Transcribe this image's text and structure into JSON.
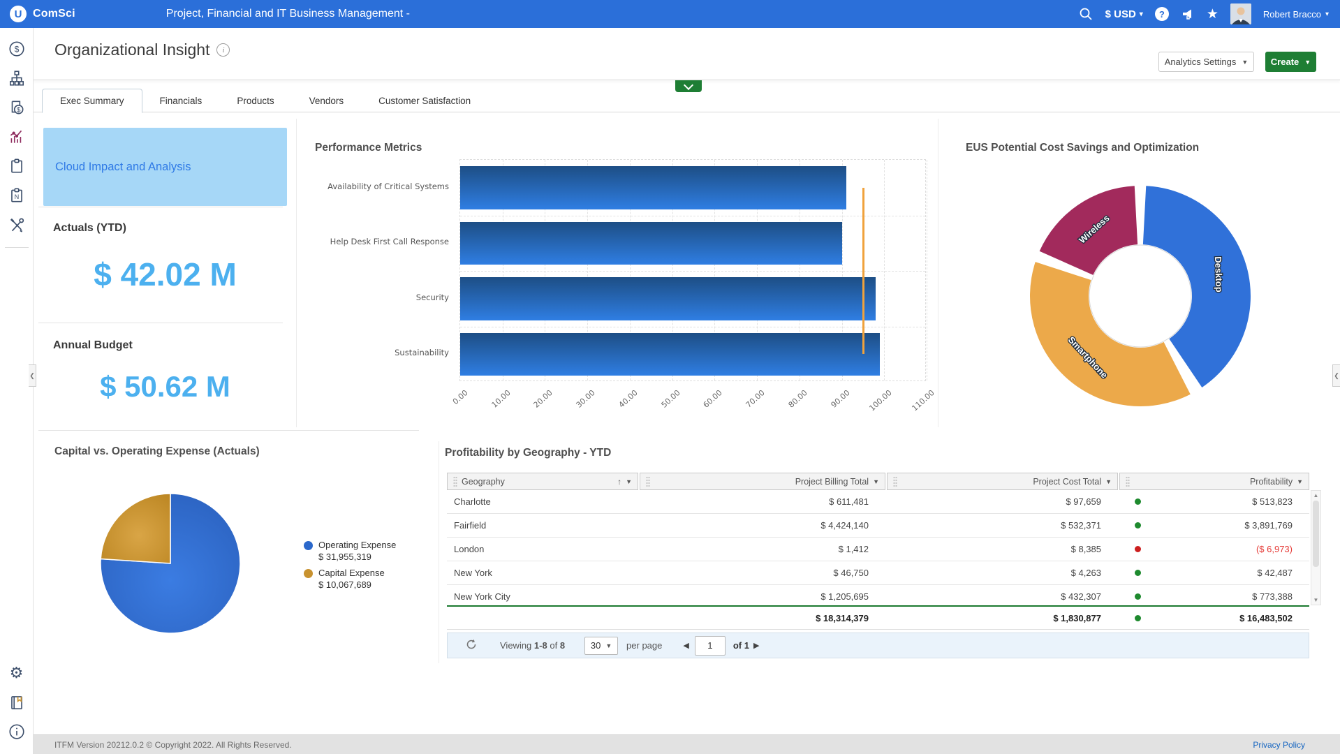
{
  "header": {
    "logo_badge": "U",
    "logo_text": "ComSci",
    "app_title": "Project, Financial and IT Business Management -",
    "currency_label": "$ USD",
    "user_name": "Robert Bracco"
  },
  "page": {
    "title": "Organizational Insight",
    "analytics_settings_label": "Analytics Settings",
    "create_label": "Create"
  },
  "tabs": {
    "items": [
      {
        "label": "Exec Summary",
        "active": true
      },
      {
        "label": "Financials",
        "active": false
      },
      {
        "label": "Products",
        "active": false
      },
      {
        "label": "Vendors",
        "active": false
      },
      {
        "label": "Customer Satisfaction",
        "active": false
      }
    ]
  },
  "sidebar": {
    "top_icons": [
      "cost-icon",
      "hierarchy-icon",
      "invoice-icon",
      "analytics-icon",
      "clipboard-icon",
      "report-icon",
      "tools-icon"
    ],
    "bottom_icons": [
      "settings-icon",
      "documentation-icon",
      "info-icon"
    ]
  },
  "kpi_panel": {
    "highlight_label": "Cloud Impact and Analysis",
    "actuals_label": "Actuals (YTD)",
    "actuals_value": "$ 42.02 M",
    "budget_label": "Annual Budget",
    "budget_value": "$ 50.62 M"
  },
  "chart_data": [
    {
      "type": "bar",
      "orientation": "horizontal",
      "title": "Performance Metrics",
      "categories": [
        "Availability of Critical Systems",
        "Help Desk First Call Response",
        "Security",
        "Sustainability"
      ],
      "values": [
        91,
        90,
        98,
        99
      ],
      "target_line": 95,
      "xlim": [
        0,
        110
      ],
      "x_ticks": [
        "0.00",
        "10.00",
        "20.00",
        "30.00",
        "40.00",
        "50.00",
        "60.00",
        "70.00",
        "80.00",
        "90.00",
        "100.00",
        "110.00"
      ],
      "grid": true,
      "legend_position": "none",
      "bar_color_top": "#1d4e85",
      "bar_color_bottom": "#2f7ee3",
      "target_color": "#f0a23c"
    },
    {
      "type": "pie",
      "subtype": "donut",
      "title": "EUS Potential Cost Savings and Optimization",
      "segments": [
        {
          "label": "Desktop",
          "percent": 40,
          "start_deg": 3,
          "end_deg": 146,
          "color": "#3071d9",
          "label_rotation": 88
        },
        {
          "label": "Smartphone",
          "percent": 37.5,
          "start_deg": 153,
          "end_deg": 288,
          "color": "#eca94a",
          "label_rotation": 47
        },
        {
          "label": "Wireless",
          "percent": 17.5,
          "start_deg": 294,
          "end_deg": 357,
          "color": "#a22a5c",
          "label_rotation": -42
        }
      ]
    },
    {
      "type": "pie",
      "title": "Capital vs. Operating Expense (Actuals)",
      "slices": [
        {
          "label": "Operating Expense",
          "value": 31955319,
          "display": "$ 31,955,319",
          "color": "#2b68cb",
          "start_deg": 0,
          "end_deg": 273.7
        },
        {
          "label": "Capital Expense",
          "value": 10067689,
          "display": "$ 10,067,689",
          "color": "#c8922f",
          "start_deg": 273.7,
          "end_deg": 360
        }
      ]
    }
  ],
  "profit_table": {
    "title": "Profitability by Geography - YTD",
    "columns": [
      {
        "label": "Geography",
        "sorted": "asc"
      },
      {
        "label": "Project Billing Total",
        "sorted": ""
      },
      {
        "label": "Project Cost Total",
        "sorted": ""
      },
      {
        "label": "Profitability",
        "sorted": ""
      }
    ],
    "rows": [
      {
        "geography": "Charlotte",
        "billing": "$ 611,481",
        "cost": "$ 97,659",
        "status": "green",
        "profit": "$ 513,823",
        "negative": false
      },
      {
        "geography": "Fairfield",
        "billing": "$ 4,424,140",
        "cost": "$ 532,371",
        "status": "green",
        "profit": "$ 3,891,769",
        "negative": false
      },
      {
        "geography": "London",
        "billing": "$ 1,412",
        "cost": "$ 8,385",
        "status": "red",
        "profit": "($ 6,973)",
        "negative": true
      },
      {
        "geography": "New York",
        "billing": "$ 46,750",
        "cost": "$ 4,263",
        "status": "green",
        "profit": "$ 42,487",
        "negative": false
      },
      {
        "geography": "New York City",
        "billing": "$ 1,205,695",
        "cost": "$ 432,307",
        "status": "green",
        "profit": "$ 773,388",
        "negative": false
      }
    ],
    "totals": {
      "billing": "$ 18,314,379",
      "cost": "$ 1,830,877",
      "status": "green",
      "profit": "$ 16,483,502"
    },
    "pagination": {
      "viewing_label": "Viewing",
      "range": "1-8",
      "of_word": "of",
      "total_count": "8",
      "per_page_value": "30",
      "per_page_label": "per page",
      "page_value": "1",
      "page_total_label": "of 1"
    }
  },
  "footer": {
    "version_text": "ITFM Version 20212.0.2 © Copyright 2022. All Rights Reserved.",
    "privacy_link": "Privacy Policy"
  },
  "colors": {
    "header_blue": "#2b6fd9",
    "accent_light_blue": "#4cb0ef",
    "highlight_bg": "#a6d7f7",
    "highlight_text": "#2e79e6",
    "create_green": "#1e7e34",
    "positive_dot": "#1e8a2e",
    "negative_dot": "#cc1f1f",
    "negative_text": "#e53935",
    "target_orange": "#f0a23c"
  }
}
